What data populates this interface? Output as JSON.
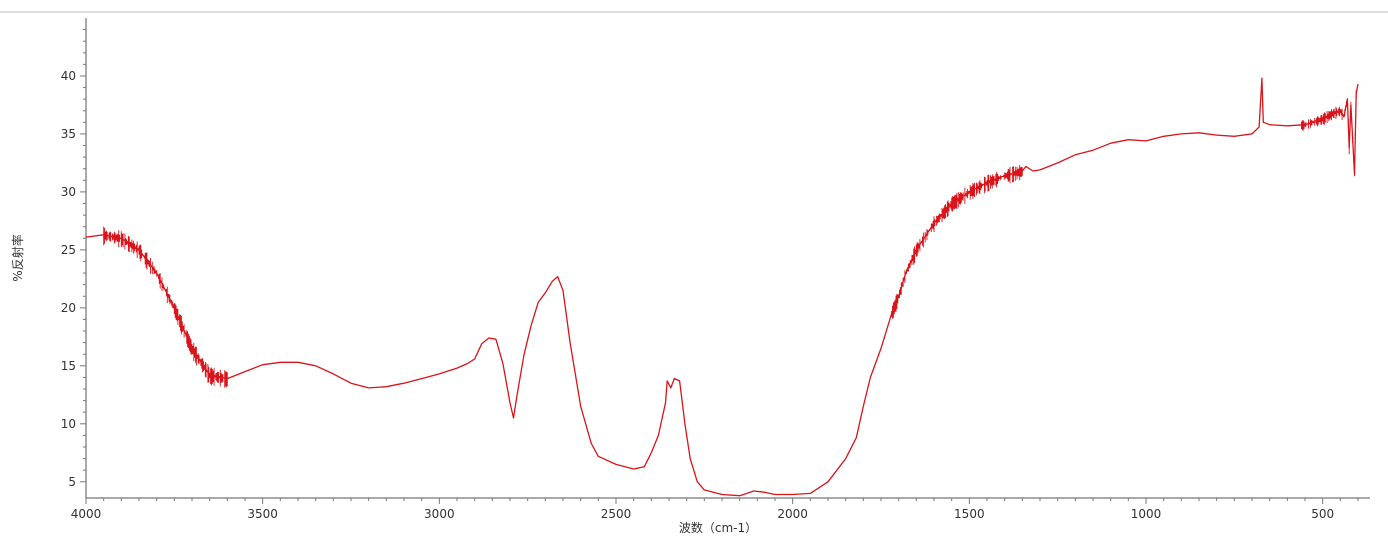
{
  "chart_data": {
    "type": "line",
    "title": "",
    "xlabel": "波数（cm-1）",
    "ylabel": "%反射率",
    "xlim": [
      4000,
      400
    ],
    "ylim": [
      3.6,
      45
    ],
    "x_reversed": true,
    "x_ticks": [
      4000,
      3500,
      3000,
      2500,
      2000,
      1500,
      1000,
      500
    ],
    "y_ticks": [
      5,
      10,
      15,
      20,
      25,
      30,
      35,
      40
    ],
    "grid": false,
    "legend": "none",
    "series": [
      {
        "color": "#d9141b",
        "points": [
          [
            4000,
            26.1
          ],
          [
            3950,
            26.3
          ],
          [
            3900,
            26.0
          ],
          [
            3850,
            25.0
          ],
          [
            3800,
            23.0
          ],
          [
            3750,
            20.0
          ],
          [
            3700,
            16.5
          ],
          [
            3650,
            14.2
          ],
          [
            3600,
            13.9
          ],
          [
            3550,
            14.5
          ],
          [
            3500,
            15.1
          ],
          [
            3450,
            15.3
          ],
          [
            3400,
            15.3
          ],
          [
            3350,
            15.0
          ],
          [
            3300,
            14.3
          ],
          [
            3250,
            13.5
          ],
          [
            3200,
            13.1
          ],
          [
            3150,
            13.2
          ],
          [
            3100,
            13.5
          ],
          [
            3050,
            13.9
          ],
          [
            3000,
            14.3
          ],
          [
            2950,
            14.8
          ],
          [
            2920,
            15.2
          ],
          [
            2900,
            15.6
          ],
          [
            2880,
            16.9
          ],
          [
            2860,
            17.4
          ],
          [
            2840,
            17.3
          ],
          [
            2820,
            15.2
          ],
          [
            2800,
            11.8
          ],
          [
            2790,
            10.5
          ],
          [
            2780,
            12.5
          ],
          [
            2760,
            16.0
          ],
          [
            2740,
            18.5
          ],
          [
            2720,
            20.5
          ],
          [
            2700,
            21.3
          ],
          [
            2680,
            22.3
          ],
          [
            2665,
            22.7
          ],
          [
            2650,
            21.5
          ],
          [
            2630,
            17.0
          ],
          [
            2600,
            11.5
          ],
          [
            2570,
            8.3
          ],
          [
            2550,
            7.2
          ],
          [
            2500,
            6.5
          ],
          [
            2450,
            6.1
          ],
          [
            2420,
            6.3
          ],
          [
            2400,
            7.5
          ],
          [
            2380,
            9.0
          ],
          [
            2360,
            11.8
          ],
          [
            2355,
            13.7
          ],
          [
            2345,
            13.1
          ],
          [
            2335,
            13.9
          ],
          [
            2320,
            13.7
          ],
          [
            2305,
            10.0
          ],
          [
            2290,
            7.0
          ],
          [
            2270,
            5.0
          ],
          [
            2250,
            4.3
          ],
          [
            2200,
            3.9
          ],
          [
            2150,
            3.8
          ],
          [
            2110,
            4.2
          ],
          [
            2080,
            4.1
          ],
          [
            2050,
            3.9
          ],
          [
            2000,
            3.9
          ],
          [
            1950,
            4.0
          ],
          [
            1900,
            5.0
          ],
          [
            1850,
            7.0
          ],
          [
            1820,
            8.8
          ],
          [
            1800,
            11.5
          ],
          [
            1780,
            14.0
          ],
          [
            1750,
            16.5
          ],
          [
            1720,
            19.5
          ],
          [
            1700,
            21.0
          ],
          [
            1680,
            23.0
          ],
          [
            1650,
            25.0
          ],
          [
            1600,
            27.3
          ],
          [
            1550,
            29.0
          ],
          [
            1500,
            30.0
          ],
          [
            1450,
            30.8
          ],
          [
            1400,
            31.4
          ],
          [
            1350,
            31.8
          ],
          [
            1340,
            32.2
          ],
          [
            1320,
            31.8
          ],
          [
            1300,
            31.9
          ],
          [
            1250,
            32.5
          ],
          [
            1200,
            33.2
          ],
          [
            1150,
            33.6
          ],
          [
            1100,
            34.2
          ],
          [
            1050,
            34.5
          ],
          [
            1000,
            34.4
          ],
          [
            950,
            34.8
          ],
          [
            900,
            35.0
          ],
          [
            850,
            35.1
          ],
          [
            800,
            34.9
          ],
          [
            750,
            34.8
          ],
          [
            700,
            35.0
          ],
          [
            680,
            35.6
          ],
          [
            672,
            39.8
          ],
          [
            668,
            36.0
          ],
          [
            650,
            35.8
          ],
          [
            600,
            35.7
          ],
          [
            550,
            35.8
          ],
          [
            500,
            36.3
          ],
          [
            470,
            36.8
          ],
          [
            450,
            37.0
          ],
          [
            440,
            36.5
          ],
          [
            430,
            38.0
          ],
          [
            425,
            33.8
          ],
          [
            420,
            37.5
          ],
          [
            410,
            31.5
          ],
          [
            405,
            38.5
          ],
          [
            400,
            39.3
          ]
        ]
      }
    ]
  }
}
